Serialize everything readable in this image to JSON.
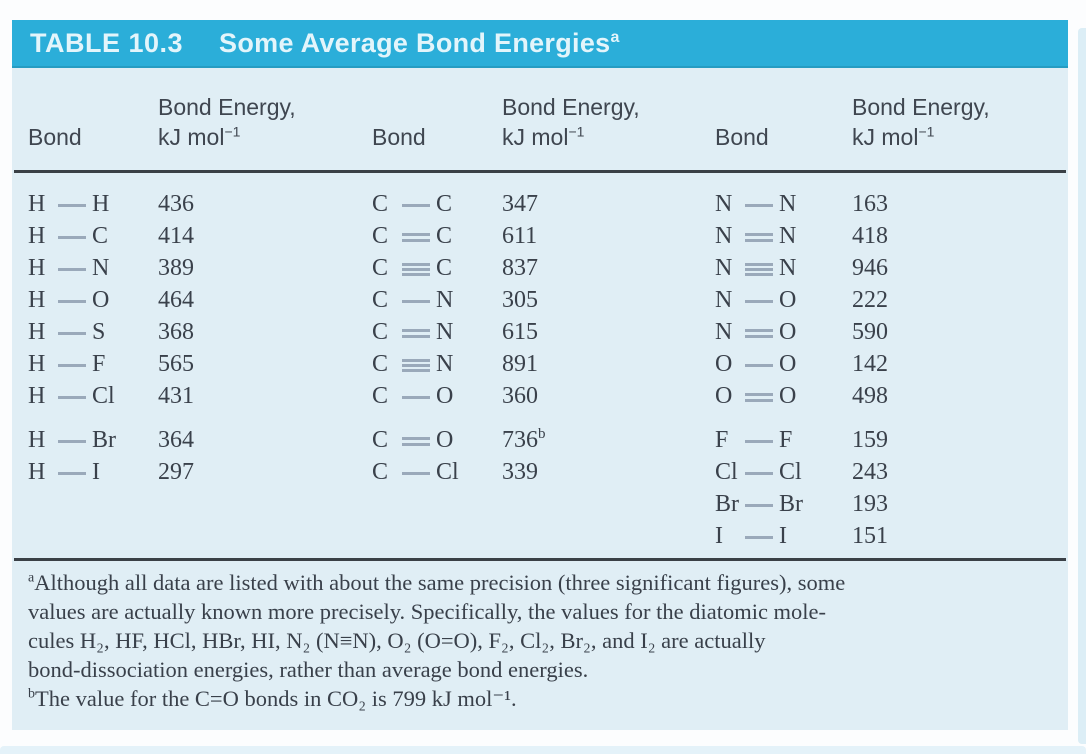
{
  "colors": {
    "header_bar": "#2baed9",
    "body_bg": "#e0eef5",
    "text_dark": "#3a414b",
    "bond_line": "#9aa9ba",
    "rule": "#3a4046"
  },
  "table": {
    "label": "TABLE 10.3",
    "title": "Some Average Bond Energies",
    "title_note": "a",
    "header": {
      "bond": "Bond",
      "energy_line1": "Bond Energy,",
      "energy_unit": "kJ mol",
      "energy_sup": "−1"
    },
    "groups": [
      {
        "block1": [
          {
            "a": "H",
            "type": "single",
            "b": "H",
            "value": "436"
          },
          {
            "a": "H",
            "type": "single",
            "b": "C",
            "value": "414"
          },
          {
            "a": "H",
            "type": "single",
            "b": "N",
            "value": "389"
          },
          {
            "a": "H",
            "type": "single",
            "b": "O",
            "value": "464"
          },
          {
            "a": "H",
            "type": "single",
            "b": "S",
            "value": "368"
          },
          {
            "a": "H",
            "type": "single",
            "b": "F",
            "value": "565"
          },
          {
            "a": "H",
            "type": "single",
            "b": "Cl",
            "value": "431"
          }
        ],
        "block2": [
          {
            "a": "H",
            "type": "single",
            "b": "Br",
            "value": "364"
          },
          {
            "a": "H",
            "type": "single",
            "b": "I",
            "value": "297"
          }
        ]
      },
      {
        "block1": [
          {
            "a": "C",
            "type": "single",
            "b": "C",
            "value": "347"
          },
          {
            "a": "C",
            "type": "double",
            "b": "C",
            "value": "611"
          },
          {
            "a": "C",
            "type": "triple",
            "b": "C",
            "value": "837"
          },
          {
            "a": "C",
            "type": "single",
            "b": "N",
            "value": "305"
          },
          {
            "a": "C",
            "type": "double",
            "b": "N",
            "value": "615"
          },
          {
            "a": "C",
            "type": "triple",
            "b": "N",
            "value": "891"
          },
          {
            "a": "C",
            "type": "single",
            "b": "O",
            "value": "360"
          }
        ],
        "block2": [
          {
            "a": "C",
            "type": "double",
            "b": "O",
            "value": "736",
            "note": "b"
          },
          {
            "a": "C",
            "type": "single",
            "b": "Cl",
            "value": "339"
          }
        ]
      },
      {
        "block1": [
          {
            "a": "N",
            "type": "single",
            "b": "N",
            "value": "163"
          },
          {
            "a": "N",
            "type": "double",
            "b": "N",
            "value": "418"
          },
          {
            "a": "N",
            "type": "triple",
            "b": "N",
            "value": "946"
          },
          {
            "a": "N",
            "type": "single",
            "b": "O",
            "value": "222"
          },
          {
            "a": "N",
            "type": "double",
            "b": "O",
            "value": "590"
          },
          {
            "a": "O",
            "type": "single",
            "b": "O",
            "value": "142"
          },
          {
            "a": "O",
            "type": "double",
            "b": "O",
            "value": "498"
          }
        ],
        "block2": [
          {
            "a": "F",
            "type": "single",
            "b": "F",
            "value": "159"
          },
          {
            "a": "Cl",
            "type": "single",
            "b": "Cl",
            "value": "243"
          },
          {
            "a": "Br",
            "type": "single",
            "b": "Br",
            "value": "193"
          },
          {
            "a": "I",
            "type": "single",
            "b": "I",
            "value": "151"
          }
        ]
      }
    ]
  },
  "footnotes": [
    {
      "marker": "a",
      "lines": [
        "Although all data are listed with about the same precision (three significant figures), some",
        "values are actually known more precisely. Specifically, the values for the diatomic mole-",
        "cules H₂, HF, HCl, HBr, HI, N₂ (N≡N), O₂ (O=O), F₂, Cl₂, Br₂, and I₂ are actually",
        "bond-dissociation energies, rather than average bond energies."
      ]
    },
    {
      "marker": "b",
      "lines": [
        "The value for the C=O bonds in CO₂ is 799 kJ mol⁻¹."
      ]
    }
  ]
}
